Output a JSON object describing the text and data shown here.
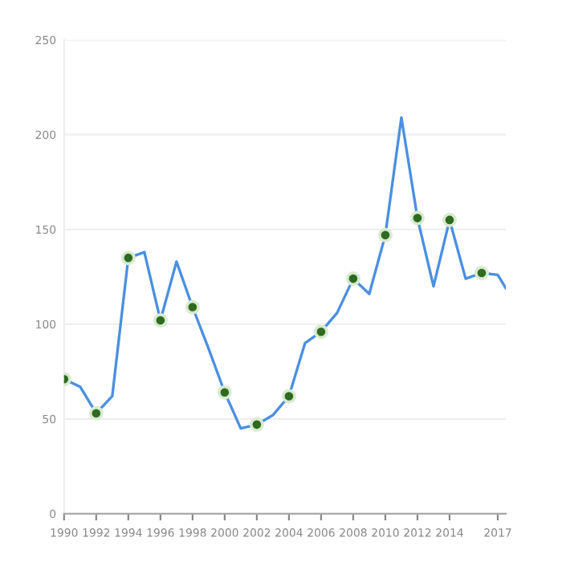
{
  "chart_data": {
    "type": "line",
    "xlim": [
      1990,
      2017.5
    ],
    "ylim": [
      0,
      250
    ],
    "xticks": [
      1990,
      1992,
      1994,
      1996,
      1998,
      2000,
      2002,
      2004,
      2006,
      2008,
      2010,
      2012,
      2014,
      2017
    ],
    "yticks": [
      0,
      50,
      100,
      150,
      200,
      250
    ],
    "grid": "y",
    "marker": "none",
    "series": [
      {
        "color": "#4a90e2",
        "x": [
          1990,
          1991,
          1992,
          1993,
          1994,
          1995,
          1996,
          1997,
          1998,
          1999,
          2000,
          2001,
          2002,
          2003,
          2004,
          2005,
          2006,
          2007,
          2008,
          2009,
          2010,
          2011,
          2012,
          2013,
          2014,
          2015,
          2016,
          2017,
          2017.5
        ],
        "values": [
          71,
          67,
          53,
          62,
          135,
          138,
          102,
          133,
          109,
          87,
          64,
          45,
          47,
          52,
          62,
          90,
          96,
          106,
          124,
          116,
          147,
          209,
          156,
          120,
          155,
          124,
          127,
          126,
          119
        ]
      },
      {
        "type": "scatter",
        "marker": "circle",
        "color": "#2e6b1f",
        "x": [
          1990,
          1992,
          1994,
          1996,
          1998,
          2000,
          2002,
          2004,
          2006,
          2008,
          2010,
          2012,
          2014,
          2016
        ],
        "values": [
          71,
          53,
          135,
          102,
          109,
          64,
          47,
          62,
          96,
          124,
          147,
          156,
          155,
          127
        ]
      }
    ]
  }
}
